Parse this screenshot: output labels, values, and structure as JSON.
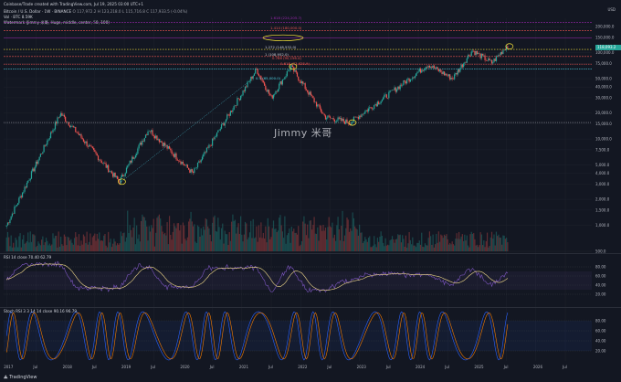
{
  "app": {
    "credit": "Coinbase/Trade created with TradingView.com, Jul 19, 2025 03:00 UTC+1",
    "logo": "TradingView",
    "currency": "USD"
  },
  "header": {
    "symbol_line": "Bitcoin / U.S. Dollar · 1W · BINANCE",
    "ohlc": "O 117,972.2  H 123,218.0  L 115,716.8  C 117,933.5 (-0.04%)",
    "vol_line": "Vol · BTC  8.59K",
    "watermark_line": "Watermark (Jimmy 米哥, Huge, middle, center, 50, 100)"
  },
  "watermark": "Jimmy 米哥",
  "rsi_header": "RSI 14 close  70.40  62.79",
  "stoch_header": "Stoch RSI 3 3 14 14 close  90.16  96.79",
  "price_axis": [
    "200,000.0",
    "150,000.0",
    "100,000.0",
    "75,000.0",
    "50,000.0",
    "40,000.0",
    "30,000.0",
    "20,000.0",
    "15,000.0",
    "10,000.0",
    "7,500.0",
    "5,000.0",
    "4,000.0",
    "3,000.0",
    "2,000.0",
    "1,500.0",
    "1,000.0",
    "500.0"
  ],
  "rsi_axis": [
    "80.00",
    "60.00",
    "40.00",
    "20.00"
  ],
  "stoch_axis": [
    "80.00",
    "60.00",
    "40.00",
    "20.00"
  ],
  "current_price": "118,093.2",
  "x_axis": [
    "2017",
    "Jul",
    "2018",
    "Jul",
    "2019",
    "Jul",
    "2020",
    "Jul",
    "2021",
    "Jul",
    "2022",
    "Jul",
    "2023",
    "Jul",
    "2024",
    "Jul",
    "2025",
    "Jul",
    "2026",
    "Jul"
  ],
  "colors": {
    "bg": "#131722",
    "up": "#26a69a",
    "down": "#ef5350",
    "rsi": "#7e57c2",
    "rsi_ma": "#f5dd8b",
    "stoch_k": "#2962ff",
    "stoch_d": "#f57c00",
    "fib": "#9c27b0",
    "level": "#4dd0e1",
    "yellow": "#ffeb3b"
  },
  "levels": {
    "fib_top": "1.618 (224,205.7)",
    "fib_mid": "1.414 (180,000.0)",
    "fib_low": "1.272 (148,532.0)",
    "level_a": "1 (108,952.0)",
    "level_b": "0.786 (90,156.4)",
    "level_c": "0.618 (73,628.9)",
    "level_d": "0.5 (65,000.0)"
  },
  "chart_data": {
    "type": "candlestick",
    "scale": "log",
    "interval": "1W",
    "x_range": [
      "2017",
      "2026"
    ],
    "y_range": [
      500,
      250000
    ],
    "key_points": [
      {
        "date": "2017-01",
        "price": 1000
      },
      {
        "date": "2017-12",
        "price": 19800
      },
      {
        "date": "2018-12",
        "price": 3200
      },
      {
        "date": "2019-06",
        "price": 13000
      },
      {
        "date": "2020-03",
        "price": 4000
      },
      {
        "date": "2021-04",
        "price": 64000
      },
      {
        "date": "2021-07",
        "price": 30000
      },
      {
        "date": "2021-11",
        "price": 69000
      },
      {
        "date": "2022-06",
        "price": 18000
      },
      {
        "date": "2022-11",
        "price": 15500
      },
      {
        "date": "2023-06",
        "price": 30000
      },
      {
        "date": "2024-03",
        "price": 73000
      },
      {
        "date": "2024-08",
        "price": 50000
      },
      {
        "date": "2024-12",
        "price": 106000
      },
      {
        "date": "2025-04",
        "price": 76000
      },
      {
        "date": "2025-07",
        "price": 118093
      }
    ],
    "rsi_range": [
      0,
      100
    ],
    "stoch_range": [
      0,
      100
    ]
  }
}
